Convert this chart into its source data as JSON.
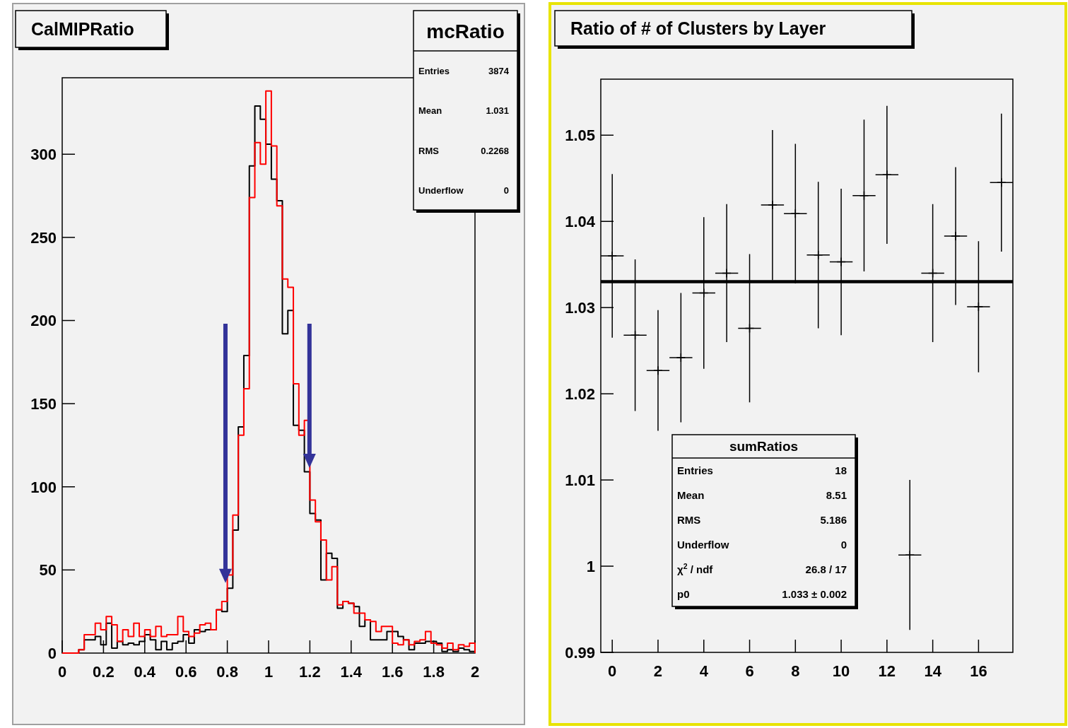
{
  "chart_data": [
    {
      "type": "histogram",
      "title": "CalMIPRatio",
      "bins": [
        0,
        0.02667,
        0.05333,
        0.08,
        0.10667,
        0.13333,
        0.16,
        0.18667,
        0.21333,
        0.24,
        0.26667,
        0.29333,
        0.32,
        0.34667,
        0.37333,
        0.4,
        0.42667,
        0.45333,
        0.48,
        0.50667,
        0.53333,
        0.56,
        0.58667,
        0.61333,
        0.64,
        0.66667,
        0.69333,
        0.72,
        0.74667,
        0.77333,
        0.8,
        0.82667,
        0.85333,
        0.88,
        0.90667,
        0.93333,
        0.96,
        0.98667,
        1.01333,
        1.04,
        1.06667,
        1.09333,
        1.12,
        1.14667,
        1.17333,
        1.2,
        1.22667,
        1.25333,
        1.28,
        1.30667,
        1.33333,
        1.36,
        1.38667,
        1.41333,
        1.44,
        1.46667,
        1.49333,
        1.52,
        1.54667,
        1.57333,
        1.6,
        1.62667,
        1.65333,
        1.68,
        1.70667,
        1.73333,
        1.76,
        1.78667,
        1.81333,
        1.84,
        1.86667,
        1.89333,
        1.92,
        1.94667,
        1.97333,
        2
      ],
      "series": [
        {
          "color": "#000000",
          "values": [
            0,
            0,
            0,
            2,
            8,
            8,
            10,
            5,
            18,
            3,
            7,
            5,
            6,
            5,
            7,
            11,
            8,
            2,
            7,
            2,
            6,
            7,
            11,
            6,
            14,
            13,
            14,
            14,
            26,
            25,
            39,
            74,
            136,
            179,
            293,
            329,
            321,
            306,
            285,
            272,
            192,
            206,
            137,
            134,
            109,
            84,
            80,
            44,
            60,
            57,
            27,
            31,
            30,
            28,
            16,
            20,
            8,
            8,
            8,
            13,
            13,
            10,
            8,
            2,
            6,
            6,
            7,
            7,
            6,
            1,
            2,
            1,
            3,
            2,
            1
          ]
        },
        {
          "color": "#ff0000",
          "values": [
            0,
            0,
            0,
            2,
            11,
            11,
            18,
            14,
            22,
            17,
            7,
            14,
            10,
            18,
            10,
            14,
            10,
            16,
            10,
            11,
            11,
            22,
            13,
            10,
            12,
            17,
            18,
            14,
            26,
            31,
            47,
            83,
            131,
            159,
            274,
            307,
            294,
            338,
            305,
            269,
            225,
            220,
            162,
            131,
            140,
            92,
            79,
            68,
            44,
            52,
            29,
            31,
            30,
            24,
            24,
            20,
            19,
            13,
            16,
            16,
            6,
            5,
            8,
            5,
            7,
            8,
            13,
            6,
            5,
            3,
            6,
            2,
            5,
            4,
            6
          ]
        }
      ],
      "xlim": [
        0,
        2
      ],
      "xticks": [
        0,
        0.2,
        0.4,
        0.6,
        0.8,
        1,
        1.2,
        1.4,
        1.6,
        1.8,
        2
      ],
      "ylim": [
        0,
        346
      ],
      "yticks": [
        0,
        50,
        100,
        150,
        200,
        250,
        300
      ],
      "annotations": [
        "mcRatio",
        "Entries\t3874",
        "Mean\t1.031",
        "RMS\t0.2268",
        "Underflow\t0"
      ]
    },
    {
      "type": "scatter",
      "title": "Ratio of # of Clusters by Layer",
      "x": [
        0,
        1,
        2,
        3,
        4,
        5,
        6,
        7,
        8,
        9,
        10,
        11,
        12,
        13,
        14,
        15,
        16,
        17
      ],
      "series": [
        {
          "color": "#000000",
          "marker": "cross",
          "values": [
            1.036,
            1.0268,
            1.0227,
            1.0242,
            1.0317,
            1.034,
            1.0276,
            1.0419,
            1.0409,
            1.0361,
            1.0353,
            1.043,
            1.0454,
            1.0013,
            1.034,
            1.0383,
            1.0301,
            1.0445
          ],
          "errors": [
            0.0095,
            0.0088,
            0.007,
            0.0075,
            0.0088,
            0.008,
            0.0086,
            0.0087,
            0.0081,
            0.0085,
            0.0085,
            0.0088,
            0.008,
            0.0087,
            0.008,
            0.008,
            0.0076,
            0.008
          ],
          "xerrors": [
            0.5,
            0.5,
            0.5,
            0.5,
            0.5,
            0.5,
            0.5,
            0.5,
            0.5,
            0.5,
            0.5,
            0.5,
            0.5,
            0.5,
            0.5,
            0.5,
            0.5,
            0.5
          ]
        },
        {
          "type": "line",
          "color": "#000000",
          "marker": "none",
          "x": [
            -0.5,
            17.5
          ],
          "values": [
            1.033,
            1.033
          ]
        }
      ],
      "xlim": [
        -0.5,
        17.5
      ],
      "xticks": [
        0,
        2,
        4,
        6,
        8,
        10,
        12,
        14,
        16
      ],
      "ylim": [
        0.99,
        1.0565
      ],
      "yticks": [
        0.99,
        1,
        1.01,
        1.02,
        1.03,
        1.04,
        1.05
      ],
      "annotations": [
        "sumRatios",
        "Entries\t18",
        "Mean\t8.51",
        "RMS\t5.186",
        "Underflow\t0",
        "χ$^{2}$ / ndf\t26.8 / 17",
        "p0\t1.033 ± 0.002"
      ]
    }
  ]
}
